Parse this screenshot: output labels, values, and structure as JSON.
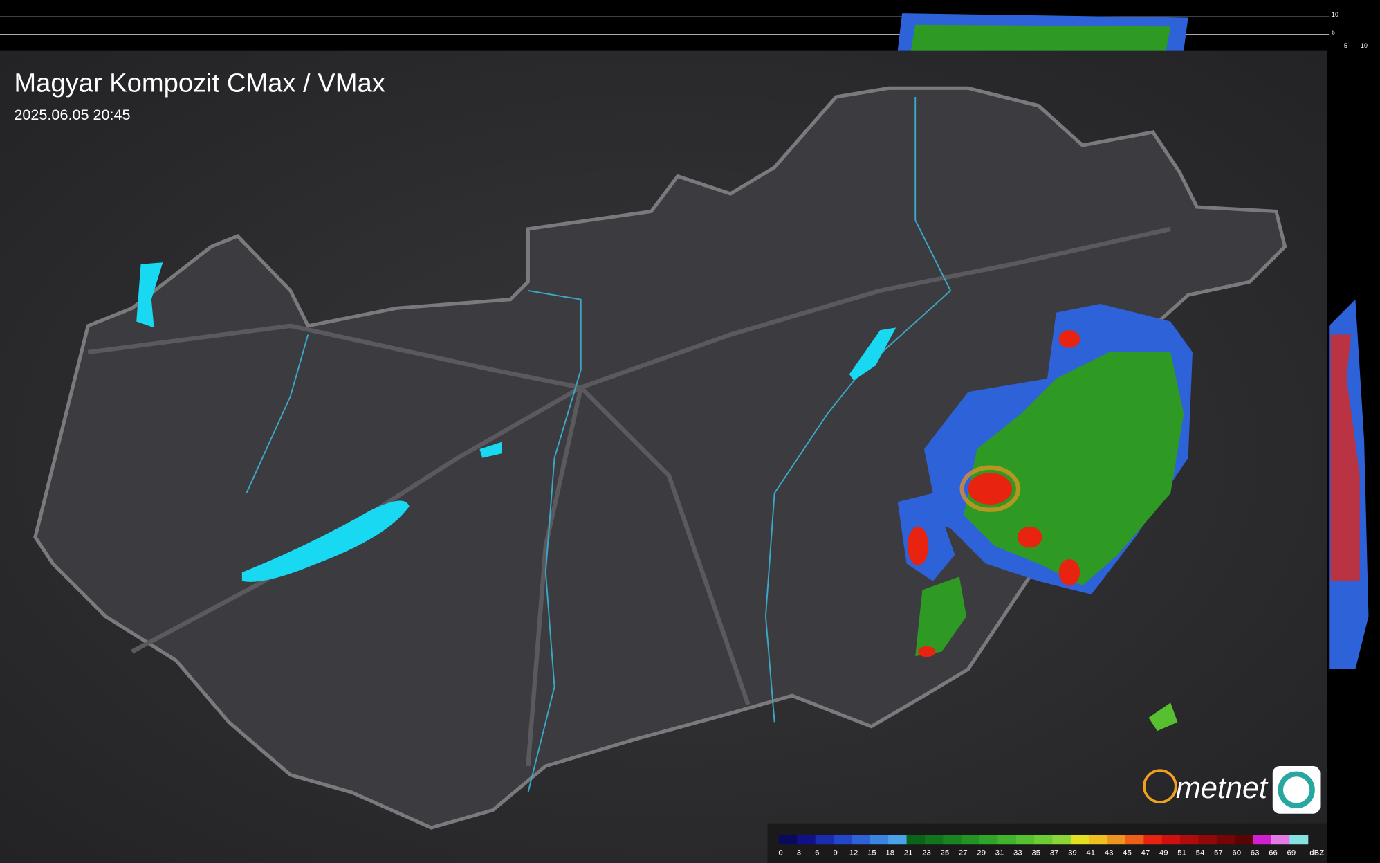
{
  "header": {
    "title": "Magyar Kompozit CMax / VMax",
    "timestamp": "2025.06.05 20:45"
  },
  "logo": {
    "text": "metnet"
  },
  "profile": {
    "top_ticks": [
      "10",
      "5"
    ],
    "side_ticks": [
      "5",
      "10"
    ]
  },
  "legend": {
    "unit": "dBZ",
    "entries": [
      {
        "label": "0",
        "color": "#0a0a5c"
      },
      {
        "label": "3",
        "color": "#101088"
      },
      {
        "label": "6",
        "color": "#1a2cb0"
      },
      {
        "label": "9",
        "color": "#2446cc"
      },
      {
        "label": "12",
        "color": "#2e62d8"
      },
      {
        "label": "15",
        "color": "#3a84e2"
      },
      {
        "label": "18",
        "color": "#4aa2ea"
      },
      {
        "label": "21",
        "color": "#0a641a"
      },
      {
        "label": "23",
        "color": "#12741c"
      },
      {
        "label": "25",
        "color": "#1a8420"
      },
      {
        "label": "27",
        "color": "#229424"
      },
      {
        "label": "29",
        "color": "#2ea428"
      },
      {
        "label": "31",
        "color": "#40b42c"
      },
      {
        "label": "33",
        "color": "#56c030"
      },
      {
        "label": "35",
        "color": "#6ccc34"
      },
      {
        "label": "37",
        "color": "#8ad638"
      },
      {
        "label": "39",
        "color": "#e2e020"
      },
      {
        "label": "41",
        "color": "#f0c020"
      },
      {
        "label": "43",
        "color": "#f09420"
      },
      {
        "label": "45",
        "color": "#ee6018"
      },
      {
        "label": "47",
        "color": "#e82410"
      },
      {
        "label": "49",
        "color": "#d01010"
      },
      {
        "label": "51",
        "color": "#b00c0c"
      },
      {
        "label": "54",
        "color": "#920808"
      },
      {
        "label": "57",
        "color": "#740606"
      },
      {
        "label": "60",
        "color": "#5a0404"
      },
      {
        "label": "63",
        "color": "#d020d0"
      },
      {
        "label": "66",
        "color": "#e47ae4"
      },
      {
        "label": "69",
        "color": "#86e2e2"
      }
    ]
  }
}
